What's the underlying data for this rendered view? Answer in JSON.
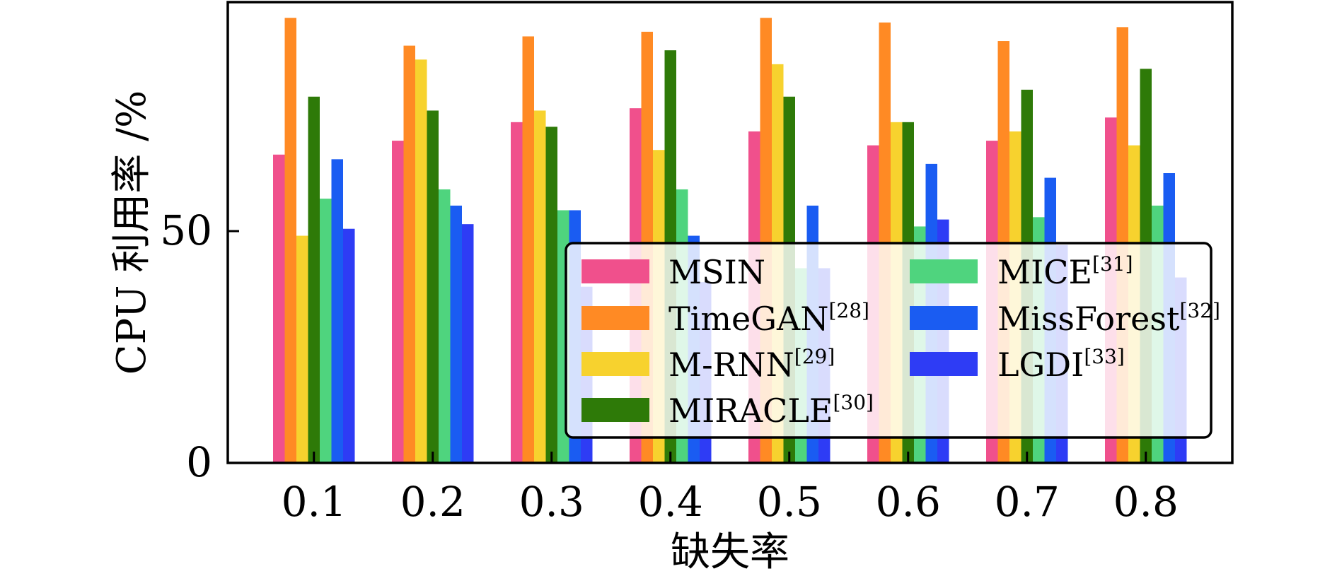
{
  "chart_data": {
    "type": "bar",
    "title": "",
    "xlabel": "缺失率",
    "ylabel": "CPU 利用率 /%",
    "categories": [
      "0.1",
      "0.2",
      "0.3",
      "0.4",
      "0.5",
      "0.6",
      "0.7",
      "0.8"
    ],
    "ylim": [
      0,
      100
    ],
    "yticks": [
      "0",
      "50"
    ],
    "ytick_values": [
      0,
      50
    ],
    "grid": false,
    "legend_position": "lower-right",
    "series": [
      {
        "name": "MSIN",
        "ref": "",
        "color": "#F0508C",
        "values": [
          66.5,
          69.5,
          73.5,
          76.5,
          71.5,
          68.5,
          69.5,
          74.5
        ]
      },
      {
        "name": "TimeGAN",
        "ref": "[28]",
        "color": "#FF8A24",
        "values": [
          96,
          90,
          92,
          93,
          96,
          95,
          91,
          94
        ]
      },
      {
        "name": "M-RNN",
        "ref": "[29]",
        "color": "#F7D22E",
        "values": [
          49,
          87,
          76,
          67.5,
          86,
          73.5,
          71.5,
          68.5
        ]
      },
      {
        "name": "MIRACLE",
        "ref": "[30]",
        "color": "#2E7A08",
        "values": [
          79,
          76,
          72.5,
          89,
          79,
          73.5,
          80.5,
          85
        ]
      },
      {
        "name": "MICE",
        "ref": "[31]",
        "color": "#4FD47E",
        "values": [
          57,
          59,
          54.5,
          59,
          42,
          51,
          53,
          55.5
        ]
      },
      {
        "name": "MissForest",
        "ref": "[32]",
        "color": "#1A5CF2",
        "values": [
          65.5,
          55.5,
          54.5,
          49,
          55.5,
          64.5,
          61.5,
          62.5
        ]
      },
      {
        "name": "LGDI",
        "ref": "[33]",
        "color": "#2E3CF5",
        "values": [
          50.5,
          51.5,
          38,
          39,
          42,
          52.5,
          47,
          40
        ]
      }
    ]
  }
}
